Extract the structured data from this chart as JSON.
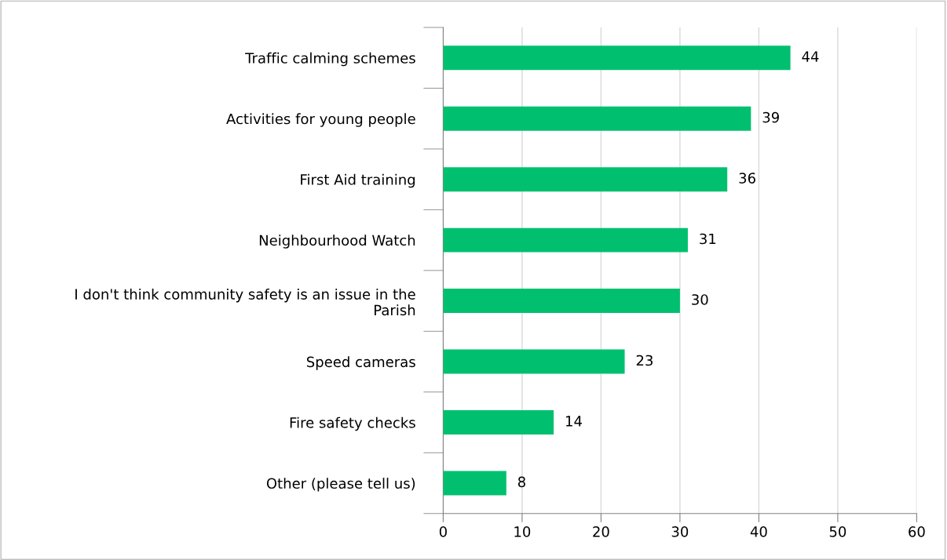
{
  "chart_data": {
    "type": "bar",
    "orientation": "horizontal",
    "categories": [
      "Traffic calming schemes",
      "Activities for young people",
      "First Aid training",
      "Neighbourhood Watch",
      "I don't think community safety is an issue in the\nParish",
      "Speed cameras",
      "Fire safety checks",
      "Other (please tell us)"
    ],
    "values": [
      44,
      39,
      36,
      31,
      30,
      23,
      14,
      8
    ],
    "color": "#00c070",
    "xlim": [
      0,
      60
    ],
    "xticks": [
      0,
      10,
      20,
      30,
      40,
      50,
      60
    ],
    "grid": "x",
    "data_labels": true
  }
}
